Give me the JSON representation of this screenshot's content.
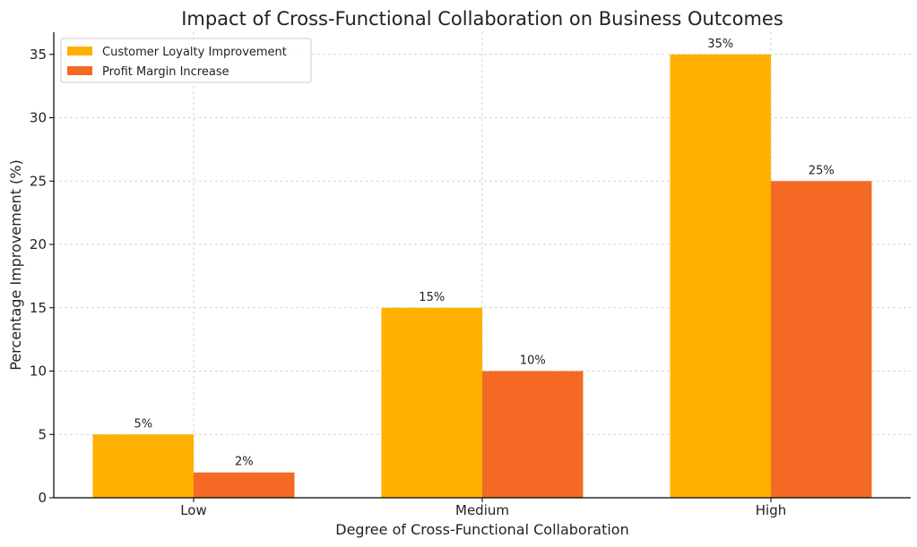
{
  "chart_data": {
    "type": "bar",
    "title": "Impact of Cross-Functional Collaboration on Business Outcomes",
    "xlabel": "Degree of Cross-Functional Collaboration",
    "ylabel": "Percentage Improvement (%)",
    "categories": [
      "Low",
      "Medium",
      "High"
    ],
    "series": [
      {
        "name": "Customer Loyalty Improvement",
        "values": [
          5,
          15,
          35
        ],
        "labels": [
          "5%",
          "15%",
          "35%"
        ],
        "color": "#FFB000"
      },
      {
        "name": "Profit Margin Increase",
        "values": [
          2,
          10,
          25
        ],
        "labels": [
          "2%",
          "10%",
          "25%"
        ],
        "color": "#F46A25"
      }
    ],
    "ylim": [
      0,
      36.75
    ],
    "yticks": [
      0,
      5,
      10,
      15,
      20,
      25,
      30,
      35
    ],
    "grid": true,
    "legend": "top-left"
  }
}
